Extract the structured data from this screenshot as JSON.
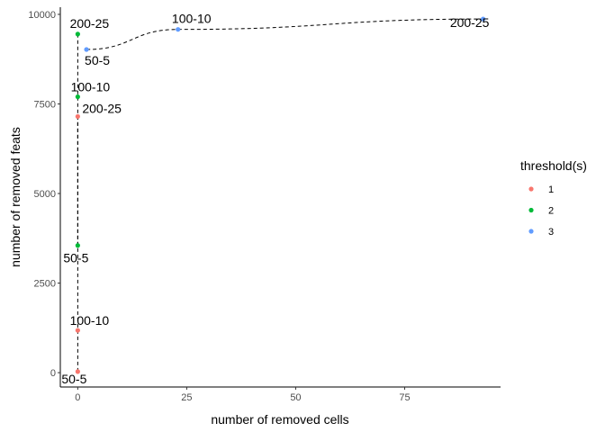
{
  "chart_data": {
    "type": "scatter",
    "title": "",
    "xlabel": "number of removed cells",
    "ylabel": "number of removed feats",
    "xlim": [
      -4,
      97
    ],
    "ylim": [
      -400,
      10200
    ],
    "x_ticks": [
      0,
      25,
      50,
      75
    ],
    "y_ticks": [
      0,
      2500,
      5000,
      7500,
      10000
    ],
    "grid": false,
    "legend": {
      "title": "threshold(s)",
      "position": "right",
      "entries": [
        {
          "label": "1",
          "color": "#F8766D"
        },
        {
          "label": "2",
          "color": "#00BA38"
        },
        {
          "label": "3",
          "color": "#619CFF"
        }
      ]
    },
    "series": [
      {
        "name": "1",
        "color": "#F8766D",
        "points": [
          {
            "x": 0,
            "y": 30,
            "label": "50-5"
          },
          {
            "x": 0,
            "y": 1180,
            "label": "100-10"
          },
          {
            "x": 0,
            "y": 7150,
            "label": "200-25"
          }
        ]
      },
      {
        "name": "2",
        "color": "#00BA38",
        "points": [
          {
            "x": 0,
            "y": 3550,
            "label": "50-5"
          },
          {
            "x": 0,
            "y": 7700,
            "label": "100-10"
          },
          {
            "x": 0,
            "y": 9450,
            "label": "200-25"
          }
        ]
      },
      {
        "name": "3",
        "color": "#619CFF",
        "points": [
          {
            "x": 2,
            "y": 9020,
            "label": "50-5"
          },
          {
            "x": 23,
            "y": 9580,
            "label": "100-10"
          },
          {
            "x": 93,
            "y": 9870,
            "label": "200-25"
          }
        ]
      }
    ]
  }
}
